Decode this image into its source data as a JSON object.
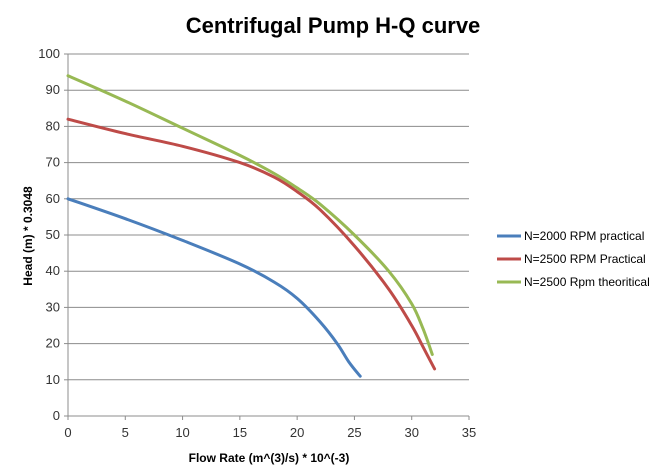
{
  "chart_data": {
    "type": "line",
    "title": "Centrifugal Pump H-Q curve",
    "xlabel": "Flow Rate (m^(3)/s) * 10^(-3)",
    "ylabel": "Head (m) * 0.3048",
    "xlim": [
      0,
      35
    ],
    "ylim": [
      0,
      100
    ],
    "xticks": [
      0,
      5,
      10,
      15,
      20,
      25,
      30,
      35
    ],
    "yticks": [
      0,
      10,
      20,
      30,
      40,
      50,
      60,
      70,
      80,
      90,
      100
    ],
    "grid": true,
    "legend_position": "right",
    "series": [
      {
        "name": "N=2000 RPM practical",
        "color": "#4a7ebb",
        "points": [
          [
            0,
            60
          ],
          [
            5,
            54.5
          ],
          [
            10,
            48.5
          ],
          [
            15,
            42
          ],
          [
            18,
            37
          ],
          [
            20,
            32.5
          ],
          [
            22,
            26
          ],
          [
            23.5,
            20
          ],
          [
            24.5,
            15
          ],
          [
            25.5,
            11
          ]
        ]
      },
      {
        "name": "N=2500 RPM Practical",
        "color": "#be4b48",
        "points": [
          [
            0,
            82
          ],
          [
            5,
            78
          ],
          [
            10,
            74.5
          ],
          [
            15,
            70
          ],
          [
            18,
            66
          ],
          [
            20,
            62
          ],
          [
            22,
            57
          ],
          [
            25,
            47
          ],
          [
            28,
            35
          ],
          [
            30,
            25
          ],
          [
            31,
            19
          ],
          [
            32,
            13
          ]
        ]
      },
      {
        "name": "N=2500 Rpm theoritical",
        "color": "#98b954",
        "points": [
          [
            0,
            94
          ],
          [
            5,
            87
          ],
          [
            10,
            79.5
          ],
          [
            15,
            72
          ],
          [
            18,
            67
          ],
          [
            20,
            63
          ],
          [
            22,
            58.5
          ],
          [
            25,
            50
          ],
          [
            28,
            40
          ],
          [
            30,
            31
          ],
          [
            31,
            24
          ],
          [
            31.8,
            17
          ]
        ]
      }
    ]
  }
}
